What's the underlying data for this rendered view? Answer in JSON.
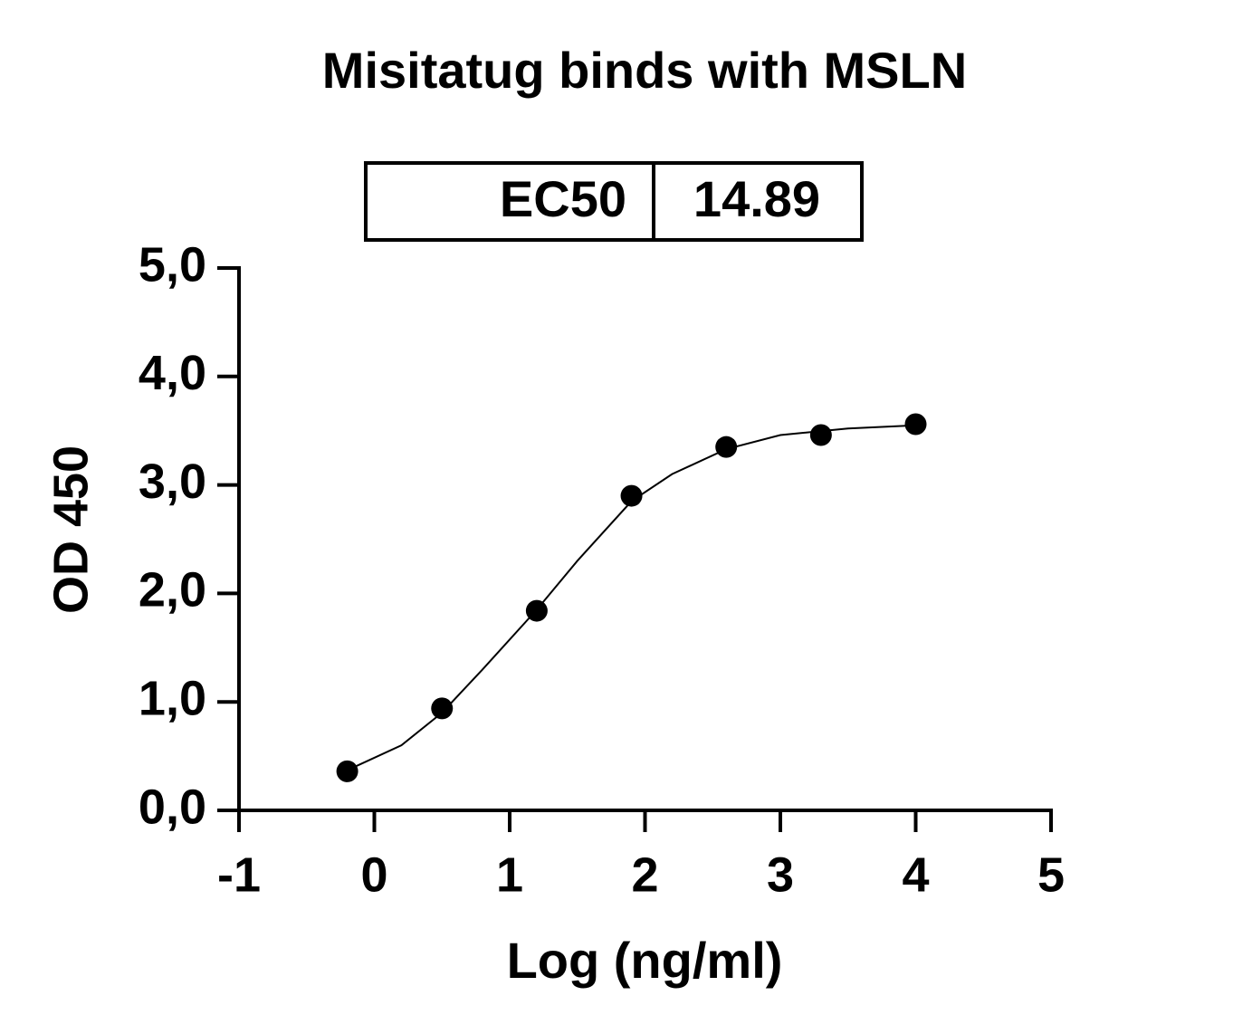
{
  "chart_data": {
    "type": "scatter",
    "title": "Misitatug binds with MSLN",
    "legend_table": {
      "label": "EC50",
      "value": "14.89"
    },
    "x_label": "Log (ng/ml)",
    "y_label": "OD 450",
    "xlim": [
      -1,
      5
    ],
    "xticks": [
      -1,
      0,
      1,
      2,
      3,
      4,
      5
    ],
    "ylim": [
      0,
      5
    ],
    "yticks": [
      {
        "value": 0,
        "label": "0,0"
      },
      {
        "value": 1,
        "label": "1,0"
      },
      {
        "value": 2,
        "label": "2,0"
      },
      {
        "value": 3,
        "label": "3,0"
      },
      {
        "value": 4,
        "label": "4,0"
      },
      {
        "value": 5,
        "label": "5,0"
      }
    ],
    "color": "#000000",
    "x": [
      -0.2,
      0.5,
      1.2,
      1.9,
      2.6,
      3.3,
      4.0
    ],
    "values": [
      0.36,
      0.94,
      1.84,
      2.9,
      3.35,
      3.46,
      3.56
    ],
    "fit": {
      "x": [
        -0.2,
        0.2,
        0.5,
        0.8,
        1.2,
        1.5,
        1.9,
        2.2,
        2.6,
        3.0,
        3.5,
        4.0
      ],
      "values": [
        0.37,
        0.6,
        0.9,
        1.3,
        1.85,
        2.3,
        2.85,
        3.1,
        3.33,
        3.46,
        3.52,
        3.55
      ]
    }
  }
}
